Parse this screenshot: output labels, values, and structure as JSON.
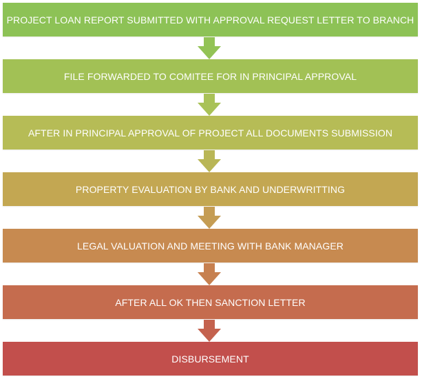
{
  "steps": [
    {
      "label": "PROJECT LOAN REPORT SUBMITTED WITH APPROVAL REQUEST LETTER TO BRANCH",
      "color": "#8dc256"
    },
    {
      "label": "FILE FORWARDED TO COMITEE FOR IN PRINCIPAL APPROVAL",
      "color": "#a2c155"
    },
    {
      "label": "AFTER IN PRINCIPAL APPROVAL OF PROJECT ALL DOCUMENTS SUBMISSION",
      "color": "#b6bc56"
    },
    {
      "label": "PROPERTY EVALUATION BY BANK AND UNDERWRITTING",
      "color": "#c3a752"
    },
    {
      "label": "LEGAL VALUATION AND MEETING WITH BANK MANAGER",
      "color": "#c78a50"
    },
    {
      "label": "AFTER ALL OK THEN SANCTION LETTER",
      "color": "#c56c4e"
    },
    {
      "label": "DISBURSEMENT",
      "color": "#c24f4c"
    }
  ],
  "arrows": [
    {
      "color": "#93c355"
    },
    {
      "color": "#a9c257"
    },
    {
      "color": "#b9b656"
    },
    {
      "color": "#c59d54"
    },
    {
      "color": "#c7804f"
    },
    {
      "color": "#c4624e"
    }
  ]
}
